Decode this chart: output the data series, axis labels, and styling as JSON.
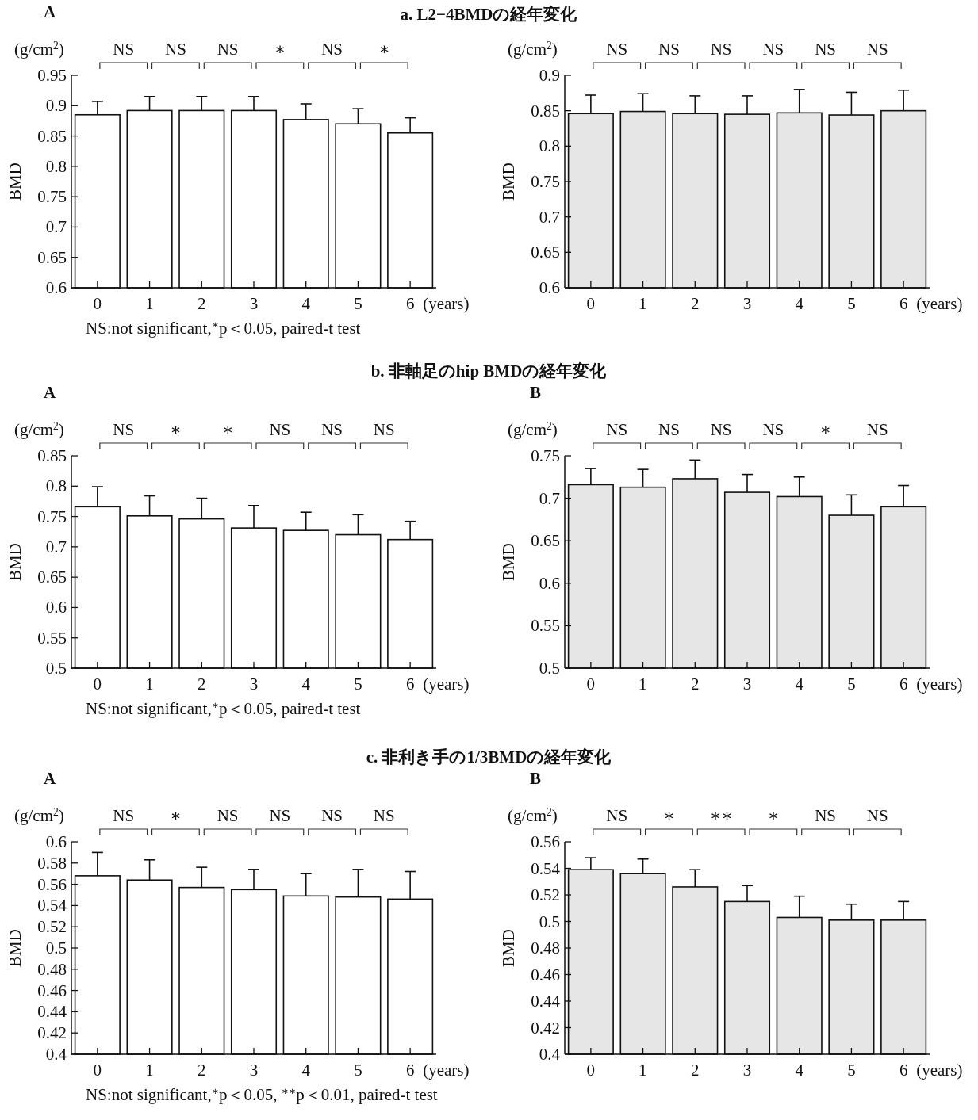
{
  "chart_data": [
    {
      "type": "bar",
      "title": "a. L2−4BMDの経年変化",
      "subtitle": "A",
      "xlabel": "(years)",
      "ylabel": "BMD",
      "categories": [
        "0",
        "1",
        "2",
        "3",
        "4",
        "5",
        "6"
      ],
      "color": "#ffffff",
      "ylim": [
        0.6,
        0.95
      ],
      "yticks": [
        0.6,
        0.65,
        0.7,
        0.75,
        0.8,
        0.85,
        0.9,
        0.95
      ],
      "values": [
        0.885,
        0.892,
        0.892,
        0.892,
        0.877,
        0.87,
        0.855
      ],
      "errors": [
        [
          0.885,
          0.907
        ],
        [
          0.892,
          0.915
        ],
        [
          0.892,
          0.915
        ],
        [
          0.892,
          0.915
        ],
        [
          0.877,
          0.903
        ],
        [
          0.87,
          0.895
        ],
        [
          0.855,
          0.88
        ]
      ],
      "annotations": [
        "(g/cm$^{2}$)",
        "NS",
        "NS",
        "NS",
        "∗",
        "NS",
        "∗",
        "NS:not significant,$^{∗}$p＜0.05, paired-t test"
      ]
    },
    {
      "type": "bar",
      "xlabel": "(years)",
      "ylabel": "BMD",
      "categories": [
        "0",
        "1",
        "2",
        "3",
        "4",
        "5",
        "6"
      ],
      "color": "#e6e6e6",
      "ylim": [
        0.6,
        0.9
      ],
      "yticks": [
        0.6,
        0.65,
        0.7,
        0.75,
        0.8,
        0.85,
        0.9
      ],
      "values": [
        0.846,
        0.849,
        0.846,
        0.845,
        0.847,
        0.844,
        0.85
      ],
      "errors": [
        [
          0.846,
          0.872
        ],
        [
          0.849,
          0.874
        ],
        [
          0.846,
          0.871
        ],
        [
          0.845,
          0.871
        ],
        [
          0.847,
          0.88
        ],
        [
          0.844,
          0.876
        ],
        [
          0.85,
          0.879
        ]
      ],
      "annotations": [
        "(g/cm$^{2}$)",
        "NS",
        "NS",
        "NS",
        "NS",
        "NS",
        "NS"
      ]
    },
    {
      "type": "bar",
      "title": "b. 非軸足のhip BMDの経年変化",
      "subtitle": "A",
      "xlabel": "(years)",
      "ylabel": "BMD",
      "categories": [
        "0",
        "1",
        "2",
        "3",
        "4",
        "5",
        "6"
      ],
      "color": "#ffffff",
      "ylim": [
        0.5,
        0.85
      ],
      "yticks": [
        0.5,
        0.55,
        0.6,
        0.65,
        0.7,
        0.75,
        0.8,
        0.85
      ],
      "values": [
        0.766,
        0.751,
        0.746,
        0.731,
        0.727,
        0.72,
        0.712
      ],
      "errors": [
        [
          0.766,
          0.799
        ],
        [
          0.751,
          0.784
        ],
        [
          0.746,
          0.78
        ],
        [
          0.731,
          0.768
        ],
        [
          0.727,
          0.757
        ],
        [
          0.72,
          0.753
        ],
        [
          0.712,
          0.742
        ]
      ],
      "annotations": [
        "(g/cm$^{2}$)",
        "NS",
        "∗",
        "∗",
        "NS",
        "NS",
        "NS",
        "NS:not significant,$^{∗}$p＜0.05, paired-t test"
      ]
    },
    {
      "type": "bar",
      "subtitle": "B",
      "xlabel": "(years)",
      "ylabel": "BMD",
      "categories": [
        "0",
        "1",
        "2",
        "3",
        "4",
        "5",
        "6"
      ],
      "color": "#e6e6e6",
      "ylim": [
        0.5,
        0.75
      ],
      "yticks": [
        0.5,
        0.55,
        0.6,
        0.65,
        0.7,
        0.75
      ],
      "values": [
        0.716,
        0.713,
        0.723,
        0.707,
        0.702,
        0.68,
        0.69
      ],
      "errors": [
        [
          0.716,
          0.735
        ],
        [
          0.713,
          0.734
        ],
        [
          0.723,
          0.745
        ],
        [
          0.707,
          0.728
        ],
        [
          0.702,
          0.725
        ],
        [
          0.68,
          0.704
        ],
        [
          0.69,
          0.715
        ]
      ],
      "annotations": [
        "(g/cm$^{2}$)",
        "NS",
        "NS",
        "NS",
        "NS",
        "∗",
        "NS"
      ]
    },
    {
      "type": "bar",
      "title": "c. 非利き手の1/3BMDの経年変化",
      "subtitle": "A",
      "xlabel": "(years)",
      "ylabel": "BMD",
      "categories": [
        "0",
        "1",
        "2",
        "3",
        "4",
        "5",
        "6"
      ],
      "color": "#ffffff",
      "ylim": [
        0.4,
        0.6
      ],
      "yticks": [
        0.4,
        0.42,
        0.44,
        0.46,
        0.48,
        0.5,
        0.52,
        0.54,
        0.56,
        0.58,
        0.6
      ],
      "values": [
        0.568,
        0.564,
        0.557,
        0.555,
        0.549,
        0.548,
        0.546
      ],
      "errors": [
        [
          0.568,
          0.59
        ],
        [
          0.564,
          0.583
        ],
        [
          0.557,
          0.576
        ],
        [
          0.555,
          0.574
        ],
        [
          0.549,
          0.57
        ],
        [
          0.548,
          0.574
        ],
        [
          0.546,
          0.572
        ]
      ],
      "annotations": [
        "(g/cm$^{2}$)",
        "NS",
        "∗",
        "NS",
        "NS",
        "NS",
        "NS",
        "NS:not significant,$^{∗}$p＜0.05, $^{∗∗}$p＜0.01, paired-t test"
      ]
    },
    {
      "type": "bar",
      "subtitle": "B",
      "xlabel": "(years)",
      "ylabel": "BMD",
      "categories": [
        "0",
        "1",
        "2",
        "3",
        "4",
        "5",
        "6"
      ],
      "color": "#e6e6e6",
      "ylim": [
        0.4,
        0.56
      ],
      "yticks": [
        0.4,
        0.42,
        0.44,
        0.46,
        0.48,
        0.5,
        0.52,
        0.54,
        0.56
      ],
      "values": [
        0.539,
        0.536,
        0.526,
        0.515,
        0.503,
        0.501,
        0.501
      ],
      "errors": [
        [
          0.539,
          0.548
        ],
        [
          0.536,
          0.547
        ],
        [
          0.526,
          0.539
        ],
        [
          0.515,
          0.527
        ],
        [
          0.503,
          0.519
        ],
        [
          0.501,
          0.513
        ],
        [
          0.501,
          0.515
        ]
      ],
      "annotations": [
        "(g/cm$^{2}$)",
        "NS",
        "∗",
        "∗∗",
        "∗",
        "NS",
        "NS"
      ]
    }
  ]
}
